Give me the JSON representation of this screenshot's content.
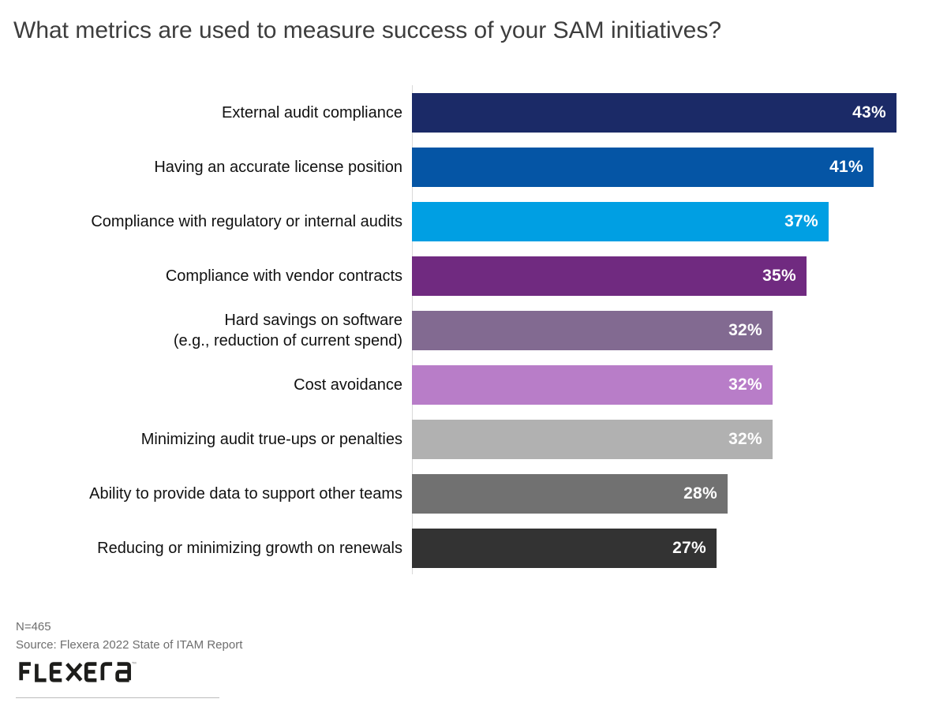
{
  "title": "What metrics are used to measure success of your SAM initiatives?",
  "chart_data": {
    "type": "bar",
    "orientation": "horizontal",
    "title": "What metrics are used to measure success of your SAM initiatives?",
    "xlabel": "",
    "ylabel": "",
    "xlim": [
      0,
      45
    ],
    "grid": false,
    "unit": "%",
    "categories": [
      "External audit compliance",
      "Having an accurate license position",
      "Compliance with regulatory or internal audits",
      "Compliance with vendor contracts",
      "Hard savings on software\n(e.g., reduction of current spend)",
      "Cost avoidance",
      "Minimizing audit true-ups or penalties",
      "Ability to provide data to support other teams",
      "Reducing or minimizing growth on renewals"
    ],
    "values": [
      43,
      41,
      37,
      35,
      32,
      32,
      32,
      28,
      27
    ],
    "value_labels": [
      "43%",
      "41%",
      "37%",
      "35%",
      "32%",
      "32%",
      "32%",
      "28%",
      "27%"
    ],
    "colors": [
      "#1b2a67",
      "#0555a5",
      "#009fe3",
      "#702a80",
      "#826a91",
      "#b87dc8",
      "#b1b1b1",
      "#717171",
      "#333333"
    ]
  },
  "footer": {
    "sample_size": "N=465",
    "source": "Source: Flexera 2022 State of ITAM Report",
    "logo_text": "FLEXERA",
    "trademark": "™",
    "logo_color": "#1d1d1b"
  }
}
